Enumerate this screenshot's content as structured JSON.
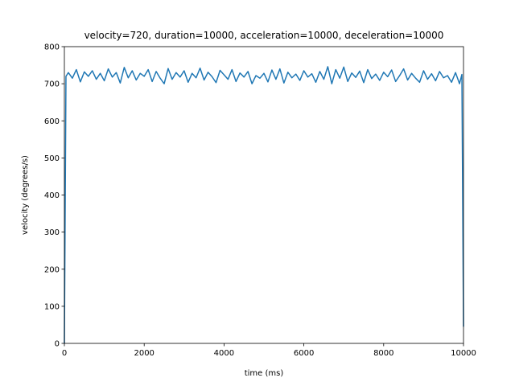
{
  "chart_data": {
    "type": "line",
    "title": "velocity=720, duration=10000, acceleration=10000, deceleration=10000",
    "xlabel": "time (ms)",
    "ylabel": "velocity (degrees/s)",
    "x": [
      0,
      40,
      100,
      200,
      300,
      400,
      500,
      600,
      700,
      800,
      900,
      1000,
      1100,
      1200,
      1300,
      1400,
      1500,
      1600,
      1700,
      1800,
      1900,
      2000,
      2100,
      2200,
      2300,
      2400,
      2500,
      2600,
      2700,
      2800,
      2900,
      3000,
      3100,
      3200,
      3300,
      3400,
      3500,
      3600,
      3700,
      3800,
      3900,
      4000,
      4100,
      4200,
      4300,
      4400,
      4500,
      4600,
      4700,
      4800,
      4900,
      5000,
      5100,
      5200,
      5300,
      5400,
      5500,
      5600,
      5700,
      5800,
      5900,
      6000,
      6100,
      6200,
      6300,
      6400,
      6500,
      6600,
      6700,
      6800,
      6900,
      7000,
      7100,
      7200,
      7300,
      7400,
      7500,
      7600,
      7700,
      7800,
      7900,
      8000,
      8100,
      8200,
      8300,
      8400,
      8500,
      8600,
      8700,
      8800,
      8900,
      9000,
      9100,
      9200,
      9300,
      9400,
      9500,
      9600,
      9700,
      9800,
      9900,
      9960,
      10000
    ],
    "series": [
      {
        "name": "velocity",
        "color": "#1f77b4",
        "values": [
          0,
          720,
          730,
          715,
          738,
          705,
          732,
          720,
          735,
          712,
          728,
          708,
          740,
          718,
          730,
          702,
          744,
          716,
          735,
          710,
          728,
          720,
          738,
          706,
          733,
          715,
          700,
          741,
          712,
          730,
          718,
          735,
          704,
          728,
          716,
          742,
          710,
          731,
          719,
          703,
          736,
          724,
          712,
          738,
          706,
          729,
          718,
          733,
          700,
          722,
          715,
          728,
          705,
          737,
          712,
          740,
          702,
          731,
          716,
          726,
          709,
          735,
          718,
          727,
          704,
          733,
          712,
          746,
          700,
          738,
          715,
          745,
          706,
          729,
          717,
          734,
          703,
          738,
          714,
          726,
          709,
          731,
          719,
          737,
          706,
          722,
          740,
          710,
          728,
          715,
          704,
          735,
          712,
          727,
          708,
          733,
          716,
          722,
          704,
          730,
          700,
          725,
          45
        ]
      }
    ],
    "xlim": [
      0,
      10000
    ],
    "ylim": [
      0,
      800
    ],
    "xticks": [
      0,
      2000,
      4000,
      6000,
      8000,
      10000
    ],
    "yticks": [
      0,
      100,
      200,
      300,
      400,
      500,
      600,
      700,
      800
    ]
  }
}
